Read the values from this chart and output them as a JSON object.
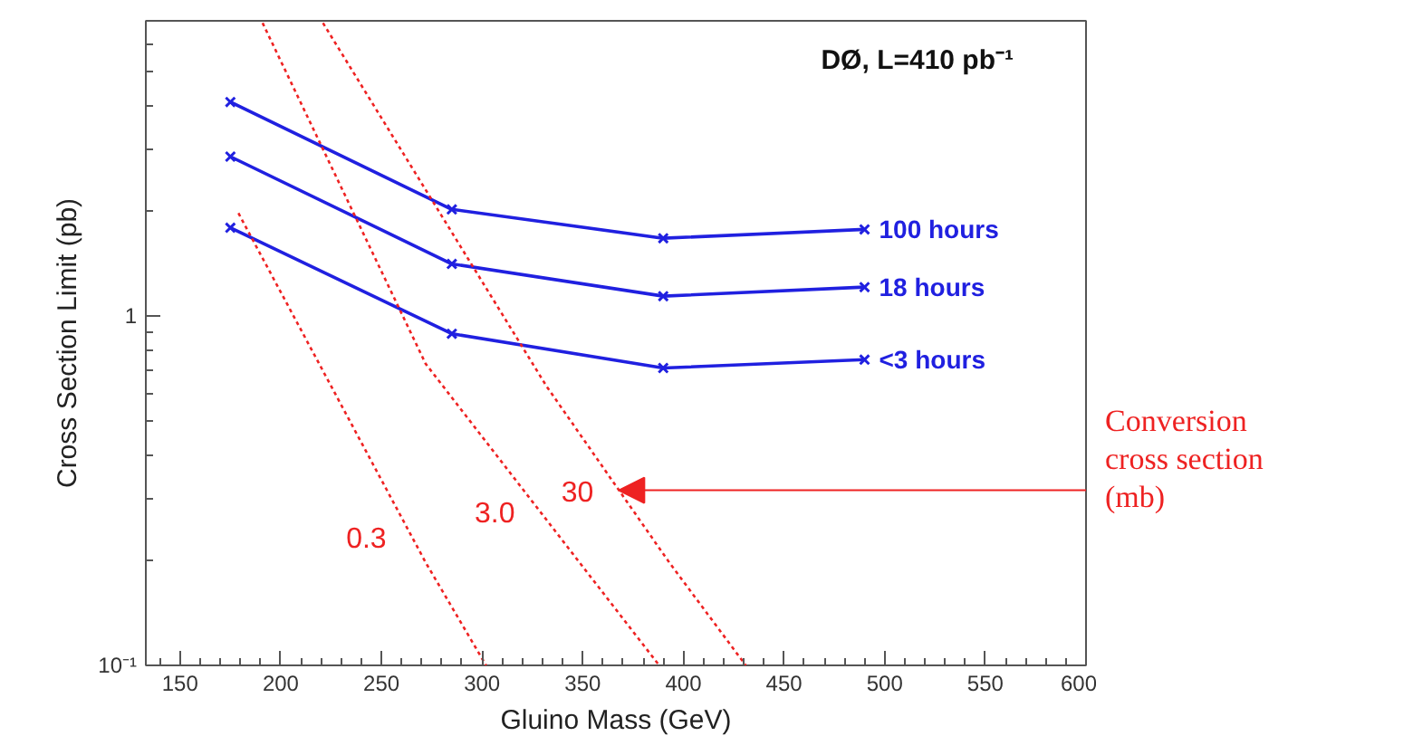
{
  "chart_data": {
    "type": "line",
    "title": "DØ, L=410 pb⁻¹",
    "xlabel": "Gluino Mass (GeV)",
    "ylabel": "Cross Section Limit (pb)",
    "x": [
      175,
      285,
      390,
      490
    ],
    "series": [
      {
        "name": "100 hours",
        "color": "#2020e0",
        "values": [
          4.1,
          2.02,
          1.67,
          1.77
        ],
        "marker": "cross",
        "line_style": "solid"
      },
      {
        "name": "18 hours",
        "color": "#2020e0",
        "values": [
          2.86,
          1.41,
          1.14,
          1.21
        ],
        "marker": "cross",
        "line_style": "solid"
      },
      {
        "name": "<3 hours",
        "color": "#2020e0",
        "values": [
          1.79,
          0.89,
          0.71,
          0.75
        ],
        "marker": "cross",
        "line_style": "solid"
      },
      {
        "name": "0.3",
        "color": "#ee2222",
        "x": [
          179,
          272,
          302
        ],
        "values": [
          1.97,
          0.197,
          0.1
        ],
        "marker": "none",
        "line_style": "dotted"
      },
      {
        "name": "3.0",
        "color": "#ee2222",
        "x": [
          191,
          272,
          388
        ],
        "values": [
          6.9,
          0.73,
          0.1
        ],
        "marker": "none",
        "line_style": "dotted"
      },
      {
        "name": "30",
        "color": "#ee2222",
        "x": [
          221,
          332,
          393,
          431
        ],
        "values": [
          6.9,
          0.63,
          0.197,
          0.1
        ],
        "marker": "none",
        "line_style": "dotted"
      }
    ],
    "annotations": [
      "Conversion cross section (mb)"
    ],
    "log": "y",
    "xlim": [
      133,
      600
    ],
    "ylim": [
      0.1,
      7
    ],
    "xticks": [
      150,
      200,
      250,
      300,
      350,
      400,
      450,
      500,
      550,
      600
    ],
    "yticks": [
      {
        "value": 0.1,
        "label": "10⁻¹"
      },
      1
    ],
    "grid": false
  }
}
